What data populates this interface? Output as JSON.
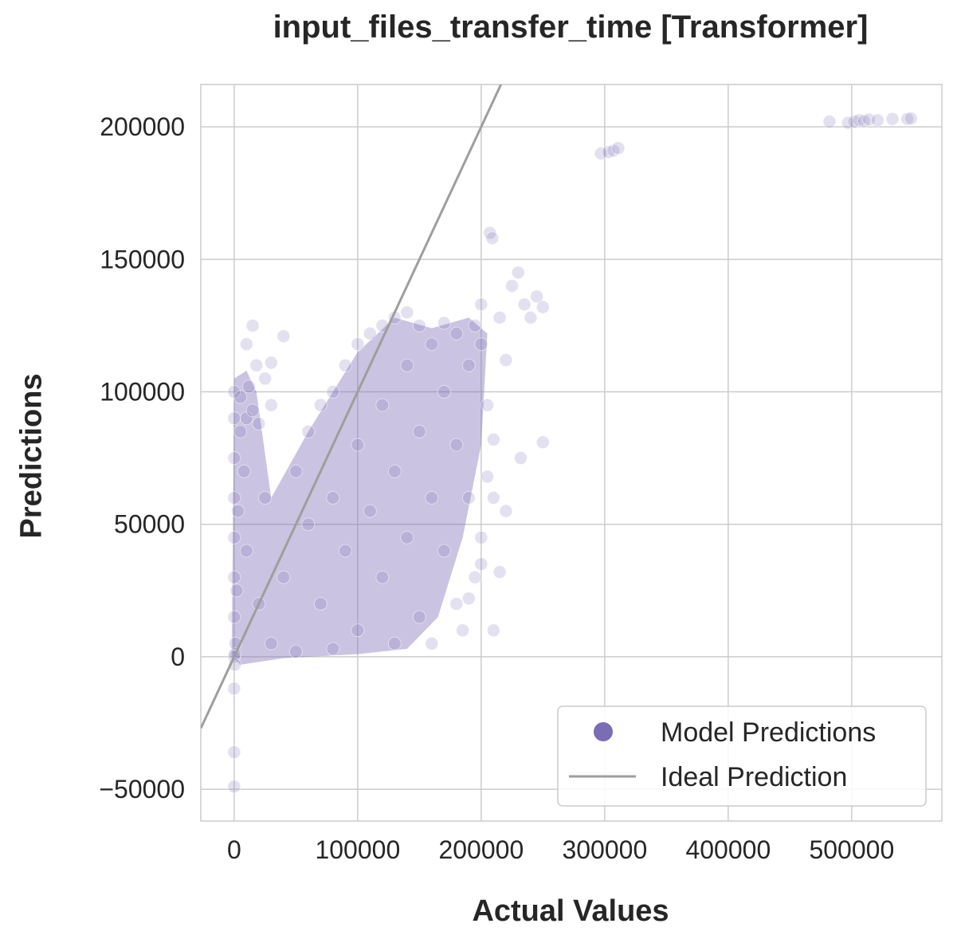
{
  "chart_data": {
    "type": "scatter",
    "title": "input_files_transfer_time [Transformer]",
    "xlabel": "Actual Values",
    "ylabel": "Predictions",
    "xlim": [
      -27000,
      573000
    ],
    "ylim": [
      -62000,
      216000
    ],
    "xticks": [
      0,
      100000,
      200000,
      300000,
      400000,
      500000
    ],
    "yticks": [
      -50000,
      0,
      50000,
      100000,
      150000,
      200000
    ],
    "xtick_labels": [
      "0",
      "100000",
      "200000",
      "300000",
      "400000",
      "500000"
    ],
    "ytick_labels": [
      "−50000",
      "0",
      "50000",
      "100000",
      "150000",
      "200000"
    ],
    "grid": true,
    "legend": {
      "placement": "lower right",
      "entries": [
        {
          "label": "Model Predictions",
          "marker": "circle",
          "color": "#7b6db3"
        },
        {
          "label": "Ideal Prediction",
          "marker": "line",
          "color": "#9e9e9e"
        }
      ]
    },
    "series": [
      {
        "name": "Model Predictions",
        "kind": "scatter",
        "color": "#8070b8",
        "alpha": 0.15,
        "points": [
          [
            0,
            0
          ],
          [
            500,
            1000
          ],
          [
            1000,
            5000
          ],
          [
            0,
            15000
          ],
          [
            0,
            30000
          ],
          [
            0,
            45000
          ],
          [
            0,
            60000
          ],
          [
            0,
            75000
          ],
          [
            0,
            90000
          ],
          [
            0,
            100000
          ],
          [
            2000,
            25000
          ],
          [
            3000,
            55000
          ],
          [
            5000,
            85000
          ],
          [
            5000,
            98000
          ],
          [
            8000,
            70000
          ],
          [
            10000,
            40000
          ],
          [
            10000,
            90000
          ],
          [
            10000,
            118000
          ],
          [
            12000,
            102000
          ],
          [
            15000,
            125000
          ],
          [
            15000,
            93000
          ],
          [
            18000,
            110000
          ],
          [
            20000,
            88000
          ],
          [
            25000,
            105000
          ],
          [
            30000,
            95000
          ],
          [
            30000,
            111000
          ],
          [
            40000,
            121000
          ],
          [
            25000,
            60000
          ],
          [
            20000,
            20000
          ],
          [
            30000,
            5000
          ],
          [
            40000,
            30000
          ],
          [
            50000,
            70000
          ],
          [
            50000,
            2000
          ],
          [
            60000,
            50000
          ],
          [
            60000,
            85000
          ],
          [
            70000,
            20000
          ],
          [
            70000,
            95000
          ],
          [
            80000,
            60000
          ],
          [
            80000,
            100000
          ],
          [
            80000,
            3000
          ],
          [
            90000,
            40000
          ],
          [
            90000,
            110000
          ],
          [
            100000,
            80000
          ],
          [
            100000,
            10000
          ],
          [
            100000,
            118000
          ],
          [
            110000,
            55000
          ],
          [
            110000,
            122000
          ],
          [
            120000,
            30000
          ],
          [
            120000,
            95000
          ],
          [
            120000,
            125000
          ],
          [
            130000,
            70000
          ],
          [
            130000,
            5000
          ],
          [
            130000,
            128000
          ],
          [
            140000,
            45000
          ],
          [
            140000,
            110000
          ],
          [
            140000,
            130000
          ],
          [
            150000,
            85000
          ],
          [
            150000,
            15000
          ],
          [
            150000,
            125000
          ],
          [
            160000,
            60000
          ],
          [
            160000,
            118000
          ],
          [
            160000,
            5000
          ],
          [
            170000,
            40000
          ],
          [
            170000,
            100000
          ],
          [
            170000,
            126000
          ],
          [
            180000,
            80000
          ],
          [
            180000,
            20000
          ],
          [
            180000,
            122000
          ],
          [
            190000,
            110000
          ],
          [
            190000,
            60000
          ],
          [
            195000,
            125000
          ],
          [
            200000,
            118000
          ],
          [
            200000,
            133000
          ],
          [
            205000,
            95000
          ],
          [
            210000,
            60000
          ],
          [
            215000,
            128000
          ],
          [
            220000,
            112000
          ],
          [
            225000,
            140000
          ],
          [
            230000,
            145000
          ],
          [
            235000,
            133000
          ],
          [
            240000,
            128000
          ],
          [
            245000,
            136000
          ],
          [
            250000,
            132000
          ],
          [
            250000,
            81000
          ],
          [
            232000,
            75000
          ],
          [
            210000,
            82000
          ],
          [
            200000,
            35000
          ],
          [
            195000,
            30000
          ],
          [
            185000,
            10000
          ],
          [
            210000,
            10000
          ],
          [
            190000,
            22000
          ],
          [
            220000,
            55000
          ],
          [
            215000,
            32000
          ],
          [
            200000,
            45000
          ],
          [
            205000,
            68000
          ],
          [
            207000,
            160000
          ],
          [
            209000,
            158000
          ],
          [
            0,
            -36000
          ],
          [
            0,
            -49000
          ],
          [
            0,
            -12000
          ],
          [
            500,
            -3000
          ],
          [
            297000,
            190000
          ],
          [
            303000,
            190500
          ],
          [
            307000,
            191000
          ],
          [
            311000,
            192000
          ],
          [
            482000,
            202000
          ],
          [
            497000,
            201500
          ],
          [
            502000,
            202000
          ],
          [
            506000,
            202500
          ],
          [
            510000,
            202200
          ],
          [
            514000,
            202800
          ],
          [
            521000,
            202500
          ],
          [
            533000,
            203000
          ],
          [
            545000,
            203000
          ],
          [
            548000,
            203200
          ]
        ]
      },
      {
        "name": "Ideal Prediction",
        "kind": "line",
        "color": "#9e9e9e",
        "points": [
          [
            -27000,
            -27000
          ],
          [
            216000,
            216000
          ]
        ]
      }
    ]
  }
}
